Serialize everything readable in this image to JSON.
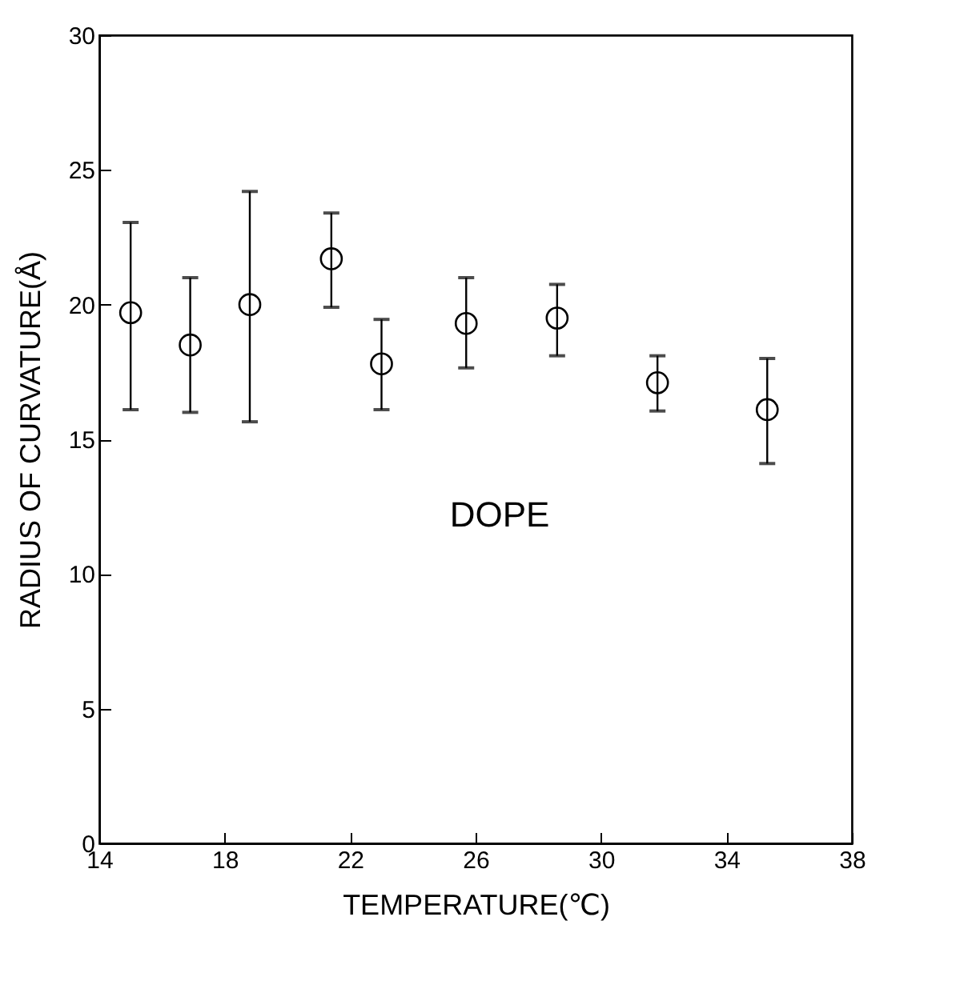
{
  "chart_data": {
    "type": "scatter",
    "xlabel": "TEMPERATURE(℃)",
    "ylabel": "RADIUS OF CURVATURE(Å)",
    "annotations": [
      "DOPE"
    ],
    "x": [
      15.0,
      16.9,
      18.8,
      21.4,
      23.0,
      25.7,
      28.6,
      31.8,
      35.3
    ],
    "values": [
      19.7,
      18.5,
      20.0,
      21.7,
      17.8,
      19.3,
      19.5,
      17.1,
      16.1
    ],
    "errors": [
      [
        16.1,
        23.05
      ],
      [
        16.0,
        21.0
      ],
      [
        15.65,
        24.2
      ],
      [
        19.9,
        23.4
      ],
      [
        16.1,
        19.45
      ],
      [
        17.65,
        21.0
      ],
      [
        18.1,
        20.75
      ],
      [
        16.05,
        18.1
      ],
      [
        14.1,
        18.0
      ]
    ],
    "color": "#000000",
    "marker": "circle",
    "xlim": [
      14,
      38
    ],
    "xticks": [
      14,
      18,
      22,
      26,
      30,
      34,
      38
    ],
    "ylim": [
      0,
      30
    ],
    "yticks": [
      0,
      5,
      10,
      15,
      20,
      25,
      30
    ],
    "grid": false
  }
}
